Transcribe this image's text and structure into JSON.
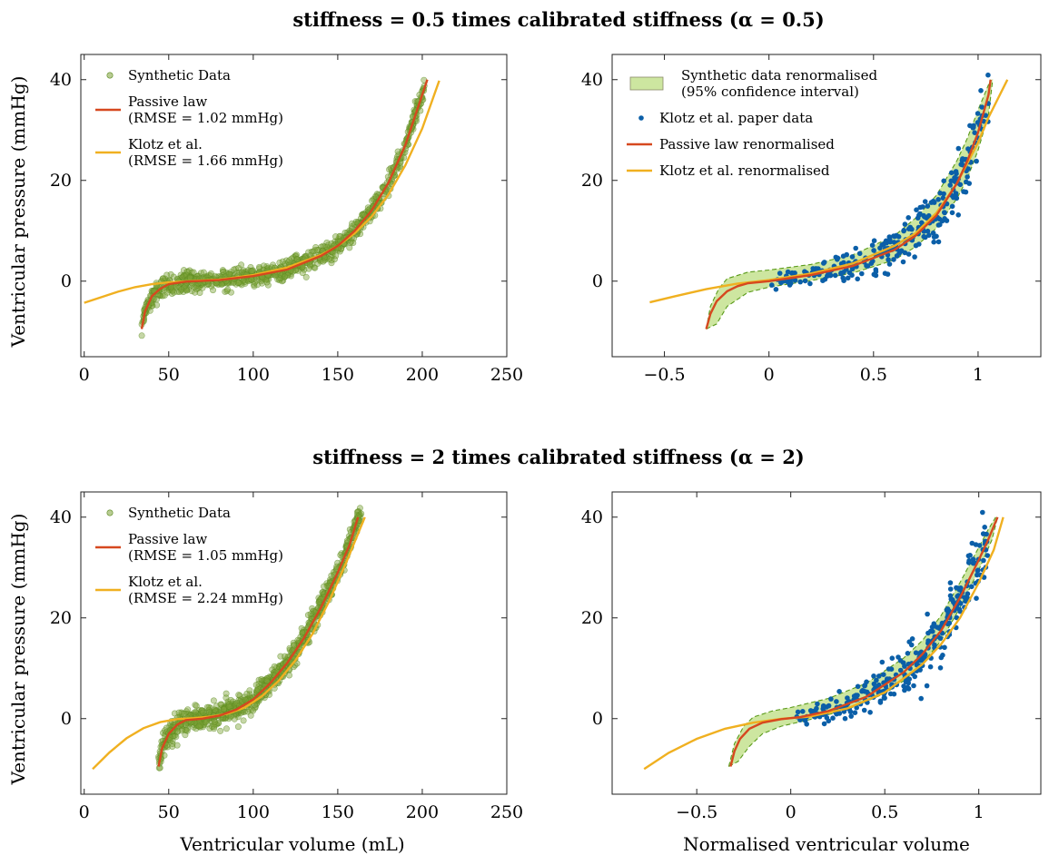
{
  "figure": {
    "top_title": "stiffness = 0.5 times calibrated stiffness (α = 0.5)",
    "bottom_title": "stiffness = 2 times calibrated stiffness (α = 2)",
    "ylabel": "Ventricular pressure (mmHg)",
    "xlabel_left": "Ventricular volume (mL)",
    "xlabel_right": "Normalised ventricular volume"
  },
  "colors": {
    "synthetic": "#7fa33a",
    "synthetic_edge": "#5a8a1e",
    "band_fill": "#cde6a0",
    "band_edge": "#5a9a1a",
    "klotz_data": "#0b5fa8",
    "passive": "#d6481f",
    "klotz": "#f0b020"
  },
  "chart_data": [
    {
      "id": "top-left",
      "type": "scatter",
      "xlim": [
        -2,
        250
      ],
      "ylim": [
        -15,
        45
      ],
      "xticks": [
        0,
        50,
        100,
        150,
        200,
        250
      ],
      "xtick_labels": [
        "0",
        "50",
        "100",
        "150",
        "200",
        "250"
      ],
      "yticks": [
        0,
        20,
        40
      ],
      "ytick_labels": [
        "0",
        "20",
        "40"
      ],
      "grid": false,
      "legend_position": "top-left",
      "legend": [
        {
          "kind": "marker",
          "lines": [
            "Synthetic Data"
          ]
        },
        {
          "kind": "line",
          "color_key": "passive",
          "lines": [
            "Passive law",
            "(RMSE = 1.02 mmHg)"
          ]
        },
        {
          "kind": "line",
          "color_key": "klotz",
          "lines": [
            "Klotz et al.",
            "(RMSE = 1.66 mmHg)"
          ]
        }
      ],
      "synthetic_points": {
        "v0": 34,
        "v1": 202,
        "count": 900,
        "noise_mmHg": 1.0
      },
      "passive_curve": [
        [
          34,
          -9.5
        ],
        [
          36,
          -6
        ],
        [
          40,
          -3
        ],
        [
          45,
          -1.5
        ],
        [
          50,
          -0.6
        ],
        [
          60,
          -0.1
        ],
        [
          80,
          0.2
        ],
        [
          100,
          1
        ],
        [
          120,
          2.3
        ],
        [
          140,
          5
        ],
        [
          150,
          7
        ],
        [
          160,
          10
        ],
        [
          170,
          14
        ],
        [
          180,
          19.5
        ],
        [
          190,
          27
        ],
        [
          195,
          32
        ],
        [
          200,
          37
        ],
        [
          203,
          40
        ]
      ],
      "klotz_curve": [
        [
          0,
          -4.3
        ],
        [
          10,
          -3.2
        ],
        [
          20,
          -2.1
        ],
        [
          30,
          -1.2
        ],
        [
          40,
          -0.6
        ],
        [
          50,
          -0.25
        ],
        [
          60,
          -0.05
        ],
        [
          80,
          0.3
        ],
        [
          100,
          1.2
        ],
        [
          120,
          2.7
        ],
        [
          140,
          5.2
        ],
        [
          150,
          7
        ],
        [
          160,
          9.5
        ],
        [
          170,
          12.8
        ],
        [
          180,
          17.2
        ],
        [
          190,
          23
        ],
        [
          200,
          30.3
        ],
        [
          210,
          39.8
        ]
      ]
    },
    {
      "id": "top-right",
      "type": "scatter",
      "xlim": [
        -0.75,
        1.3
      ],
      "ylim": [
        -15,
        45
      ],
      "xticks": [
        -0.5,
        0,
        0.5,
        1
      ],
      "xtick_labels": [
        "−0.5",
        "0",
        "0.5",
        "1"
      ],
      "yticks": [
        0,
        20,
        40
      ],
      "ytick_labels": [
        "0",
        "20",
        "40"
      ],
      "grid": false,
      "legend_position": "top-left",
      "legend": [
        {
          "kind": "band",
          "lines": [
            "Synthetic data renormalised",
            "(95% confidence interval)"
          ]
        },
        {
          "kind": "dot",
          "lines": [
            "Klotz et al. paper data"
          ]
        },
        {
          "kind": "line",
          "color_key": "passive",
          "lines": [
            "Passive law renormalised"
          ]
        },
        {
          "kind": "line",
          "color_key": "klotz",
          "lines": [
            "Klotz et al. renormalised"
          ]
        }
      ],
      "band_upper": [
        [
          -0.3,
          -9.5
        ],
        [
          -0.28,
          -5
        ],
        [
          -0.24,
          -1.5
        ],
        [
          -0.2,
          0.5
        ],
        [
          -0.1,
          1.8
        ],
        [
          0,
          2.2
        ],
        [
          0.2,
          3.3
        ],
        [
          0.4,
          5.2
        ],
        [
          0.6,
          9
        ],
        [
          0.7,
          12.5
        ],
        [
          0.8,
          17
        ],
        [
          0.9,
          24
        ],
        [
          0.95,
          28.5
        ],
        [
          1.0,
          34
        ],
        [
          1.06,
          40
        ]
      ],
      "band_lower": [
        [
          -0.3,
          -9.5
        ],
        [
          -0.25,
          -8.5
        ],
        [
          -0.2,
          -5
        ],
        [
          -0.1,
          -2.2
        ],
        [
          0,
          -1.2
        ],
        [
          0.2,
          0.1
        ],
        [
          0.4,
          1.6
        ],
        [
          0.6,
          4.2
        ],
        [
          0.7,
          6.8
        ],
        [
          0.8,
          10.5
        ],
        [
          0.9,
          16.5
        ],
        [
          0.95,
          20.5
        ],
        [
          1.0,
          26
        ],
        [
          1.05,
          33
        ],
        [
          1.07,
          40
        ]
      ],
      "passive_curve": [
        [
          -0.3,
          -9.5
        ],
        [
          -0.28,
          -6.5
        ],
        [
          -0.25,
          -4
        ],
        [
          -0.2,
          -2
        ],
        [
          -0.15,
          -1
        ],
        [
          -0.1,
          -0.4
        ],
        [
          0,
          0
        ],
        [
          0.2,
          1.2
        ],
        [
          0.4,
          3
        ],
        [
          0.6,
          6.2
        ],
        [
          0.7,
          9
        ],
        [
          0.8,
          13
        ],
        [
          0.9,
          19.5
        ],
        [
          0.95,
          24
        ],
        [
          1.0,
          29.5
        ],
        [
          1.05,
          37
        ],
        [
          1.06,
          40
        ]
      ],
      "klotz_curve": [
        [
          -0.57,
          -4.2
        ],
        [
          -0.45,
          -3
        ],
        [
          -0.3,
          -1.6
        ],
        [
          -0.15,
          -0.5
        ],
        [
          0,
          0.2
        ],
        [
          0.2,
          1.5
        ],
        [
          0.4,
          3.5
        ],
        [
          0.6,
          7
        ],
        [
          0.7,
          9.5
        ],
        [
          0.8,
          13.5
        ],
        [
          0.9,
          19.5
        ],
        [
          1.0,
          27.5
        ],
        [
          1.05,
          32.5
        ],
        [
          1.14,
          40
        ]
      ],
      "klotz_points": {
        "x0": 0.0,
        "x1": 1.05,
        "count": 280,
        "noise_mmHg": 2.5
      }
    },
    {
      "id": "bottom-left",
      "type": "scatter",
      "xlim": [
        -2,
        250
      ],
      "ylim": [
        -15,
        45
      ],
      "xticks": [
        0,
        50,
        100,
        150,
        200,
        250
      ],
      "xtick_labels": [
        "0",
        "50",
        "100",
        "150",
        "200",
        "250"
      ],
      "yticks": [
        0,
        20,
        40
      ],
      "ytick_labels": [
        "0",
        "20",
        "40"
      ],
      "grid": false,
      "legend_position": "top-left",
      "legend": [
        {
          "kind": "marker",
          "lines": [
            "Synthetic Data"
          ]
        },
        {
          "kind": "line",
          "color_key": "passive",
          "lines": [
            "Passive law",
            "(RMSE = 1.05 mmHg)"
          ]
        },
        {
          "kind": "line",
          "color_key": "klotz",
          "lines": [
            "Klotz et al.",
            "(RMSE = 2.24 mmHg)"
          ]
        }
      ],
      "synthetic_points": {
        "v0": 44,
        "v1": 164,
        "count": 900,
        "noise_mmHg": 1.2
      },
      "passive_curve": [
        [
          44,
          -9.5
        ],
        [
          46,
          -6
        ],
        [
          50,
          -3
        ],
        [
          55,
          -1.2
        ],
        [
          60,
          -0.3
        ],
        [
          70,
          0
        ],
        [
          80,
          0.6
        ],
        [
          90,
          1.8
        ],
        [
          100,
          3.8
        ],
        [
          110,
          7
        ],
        [
          120,
          11
        ],
        [
          130,
          16
        ],
        [
          140,
          22
        ],
        [
          150,
          29
        ],
        [
          157,
          34.5
        ],
        [
          162,
          40
        ]
      ],
      "klotz_curve": [
        [
          5,
          -10
        ],
        [
          15,
          -6.7
        ],
        [
          25,
          -3.9
        ],
        [
          35,
          -1.9
        ],
        [
          45,
          -0.7
        ],
        [
          55,
          -0.1
        ],
        [
          65,
          0.1
        ],
        [
          75,
          0.4
        ],
        [
          85,
          1
        ],
        [
          95,
          2.2
        ],
        [
          105,
          4.4
        ],
        [
          115,
          7.5
        ],
        [
          125,
          11.6
        ],
        [
          135,
          16.8
        ],
        [
          145,
          23.4
        ],
        [
          155,
          31
        ],
        [
          166,
          40
        ]
      ]
    },
    {
      "id": "bottom-right",
      "type": "scatter",
      "xlim": [
        -0.95,
        1.33
      ],
      "ylim": [
        -15,
        45
      ],
      "xticks": [
        -0.5,
        0,
        0.5,
        1
      ],
      "xtick_labels": [
        "−0.5",
        "0",
        "0.5",
        "1"
      ],
      "yticks": [
        0,
        20,
        40
      ],
      "ytick_labels": [
        "0",
        "20",
        "40"
      ],
      "grid": false,
      "legend_position": "none",
      "legend": [],
      "band_upper": [
        [
          -0.33,
          -9.5
        ],
        [
          -0.3,
          -5
        ],
        [
          -0.25,
          -1.5
        ],
        [
          -0.2,
          0.3
        ],
        [
          -0.1,
          1.5
        ],
        [
          0,
          2.2
        ],
        [
          0.2,
          4
        ],
        [
          0.4,
          7
        ],
        [
          0.6,
          12
        ],
        [
          0.7,
          15.5
        ],
        [
          0.8,
          20.5
        ],
        [
          0.9,
          27
        ],
        [
          1.0,
          34
        ],
        [
          1.05,
          37.5
        ],
        [
          1.09,
          40
        ]
      ],
      "band_lower": [
        [
          -0.33,
          -9.5
        ],
        [
          -0.28,
          -8.5
        ],
        [
          -0.22,
          -5.5
        ],
        [
          -0.15,
          -3
        ],
        [
          -0.05,
          -1.5
        ],
        [
          0.1,
          -0.2
        ],
        [
          0.3,
          1.8
        ],
        [
          0.5,
          5
        ],
        [
          0.6,
          7.5
        ],
        [
          0.7,
          11
        ],
        [
          0.8,
          15.5
        ],
        [
          0.9,
          22
        ],
        [
          1.0,
          29.5
        ],
        [
          1.07,
          35.5
        ],
        [
          1.1,
          40
        ]
      ],
      "passive_curve": [
        [
          -0.32,
          -9.5
        ],
        [
          -0.3,
          -6.5
        ],
        [
          -0.27,
          -4
        ],
        [
          -0.22,
          -2
        ],
        [
          -0.15,
          -0.8
        ],
        [
          -0.05,
          -0.1
        ],
        [
          0.05,
          0.3
        ],
        [
          0.2,
          1.5
        ],
        [
          0.4,
          4.3
        ],
        [
          0.6,
          9.2
        ],
        [
          0.7,
          12.8
        ],
        [
          0.8,
          17.5
        ],
        [
          0.9,
          24
        ],
        [
          1.0,
          31.5
        ],
        [
          1.05,
          35.5
        ],
        [
          1.1,
          40
        ]
      ],
      "klotz_curve": [
        [
          -0.78,
          -10
        ],
        [
          -0.65,
          -6.8
        ],
        [
          -0.5,
          -4
        ],
        [
          -0.35,
          -2
        ],
        [
          -0.2,
          -0.8
        ],
        [
          -0.05,
          -0.05
        ],
        [
          0.1,
          0.4
        ],
        [
          0.3,
          2
        ],
        [
          0.5,
          5.2
        ],
        [
          0.7,
          10.8
        ],
        [
          0.8,
          14.8
        ],
        [
          0.9,
          20
        ],
        [
          1.0,
          27
        ],
        [
          1.08,
          33.5
        ],
        [
          1.13,
          40
        ]
      ],
      "klotz_points": {
        "x0": 0.0,
        "x1": 1.05,
        "count": 280,
        "noise_mmHg": 2.5
      }
    }
  ]
}
